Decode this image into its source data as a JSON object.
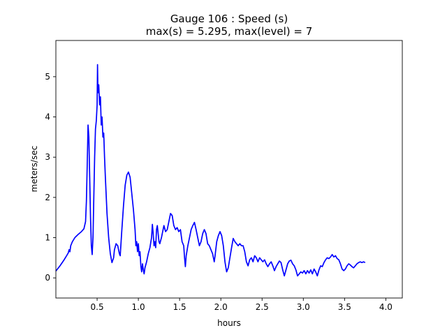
{
  "chart_data": {
    "type": "line",
    "title_line1": "Gauge 106 : Speed (s)",
    "title_line2": "max(s) =   5.295,    max(level) = 7",
    "xlabel": "hours",
    "ylabel": "meters/sec",
    "xlim": [
      0.0,
      4.2
    ],
    "ylim": [
      -0.5,
      5.9
    ],
    "xticks": [
      {
        "value": 0.5,
        "label": "0.5"
      },
      {
        "value": 1.0,
        "label": "1.0"
      },
      {
        "value": 1.5,
        "label": "1.5"
      },
      {
        "value": 2.0,
        "label": "2.0"
      },
      {
        "value": 2.5,
        "label": "2.5"
      },
      {
        "value": 3.0,
        "label": "3.0"
      },
      {
        "value": 3.5,
        "label": "3.5"
      },
      {
        "value": 4.0,
        "label": "4.0"
      }
    ],
    "yticks": [
      {
        "value": 0,
        "label": "0"
      },
      {
        "value": 1,
        "label": "1"
      },
      {
        "value": 2,
        "label": "2"
      },
      {
        "value": 3,
        "label": "3"
      },
      {
        "value": 4,
        "label": "4"
      },
      {
        "value": 5,
        "label": "5"
      }
    ],
    "grid": false,
    "series": [
      {
        "color": "#0000ff",
        "points": [
          [
            0.0,
            0.17
          ],
          [
            0.05,
            0.3
          ],
          [
            0.1,
            0.45
          ],
          [
            0.13,
            0.55
          ],
          [
            0.15,
            0.62
          ],
          [
            0.16,
            0.7
          ],
          [
            0.17,
            0.65
          ],
          [
            0.18,
            0.8
          ],
          [
            0.2,
            0.9
          ],
          [
            0.23,
            1.0
          ],
          [
            0.27,
            1.08
          ],
          [
            0.31,
            1.15
          ],
          [
            0.34,
            1.22
          ],
          [
            0.36,
            1.4
          ],
          [
            0.37,
            1.9
          ],
          [
            0.38,
            2.8
          ],
          [
            0.39,
            3.8
          ],
          [
            0.4,
            3.5
          ],
          [
            0.41,
            2.5
          ],
          [
            0.42,
            1.5
          ],
          [
            0.43,
            0.8
          ],
          [
            0.44,
            0.58
          ],
          [
            0.45,
            1.0
          ],
          [
            0.46,
            2.0
          ],
          [
            0.47,
            3.0
          ],
          [
            0.48,
            3.7
          ],
          [
            0.49,
            3.9
          ],
          [
            0.5,
            4.3
          ],
          [
            0.505,
            5.3
          ],
          [
            0.51,
            4.6
          ],
          [
            0.52,
            4.8
          ],
          [
            0.53,
            4.3
          ],
          [
            0.54,
            4.5
          ],
          [
            0.55,
            3.8
          ],
          [
            0.56,
            4.0
          ],
          [
            0.57,
            3.5
          ],
          [
            0.58,
            3.6
          ],
          [
            0.59,
            3.0
          ],
          [
            0.6,
            2.5
          ],
          [
            0.62,
            1.6
          ],
          [
            0.64,
            1.0
          ],
          [
            0.66,
            0.6
          ],
          [
            0.68,
            0.38
          ],
          [
            0.7,
            0.5
          ],
          [
            0.71,
            0.7
          ],
          [
            0.73,
            0.85
          ],
          [
            0.75,
            0.8
          ],
          [
            0.77,
            0.6
          ],
          [
            0.78,
            0.55
          ],
          [
            0.8,
            1.2
          ],
          [
            0.82,
            1.8
          ],
          [
            0.84,
            2.3
          ],
          [
            0.86,
            2.55
          ],
          [
            0.88,
            2.63
          ],
          [
            0.9,
            2.5
          ],
          [
            0.92,
            2.1
          ],
          [
            0.94,
            1.7
          ],
          [
            0.96,
            1.2
          ],
          [
            0.97,
            0.8
          ],
          [
            0.98,
            0.9
          ],
          [
            0.99,
            0.65
          ],
          [
            1.0,
            0.85
          ],
          [
            1.01,
            0.55
          ],
          [
            1.02,
            0.65
          ],
          [
            1.03,
            0.3
          ],
          [
            1.04,
            0.15
          ],
          [
            1.05,
            0.35
          ],
          [
            1.06,
            0.2
          ],
          [
            1.07,
            0.1
          ],
          [
            1.08,
            0.25
          ],
          [
            1.1,
            0.4
          ],
          [
            1.12,
            0.6
          ],
          [
            1.14,
            0.75
          ],
          [
            1.16,
            1.0
          ],
          [
            1.17,
            1.33
          ],
          [
            1.18,
            1.1
          ],
          [
            1.19,
            0.8
          ],
          [
            1.2,
            0.9
          ],
          [
            1.21,
            0.75
          ],
          [
            1.22,
            1.2
          ],
          [
            1.23,
            1.3
          ],
          [
            1.24,
            1.1
          ],
          [
            1.25,
            0.9
          ],
          [
            1.26,
            0.85
          ],
          [
            1.28,
            1.0
          ],
          [
            1.3,
            1.2
          ],
          [
            1.31,
            1.3
          ],
          [
            1.33,
            1.15
          ],
          [
            1.35,
            1.2
          ],
          [
            1.37,
            1.4
          ],
          [
            1.39,
            1.6
          ],
          [
            1.41,
            1.55
          ],
          [
            1.43,
            1.3
          ],
          [
            1.45,
            1.2
          ],
          [
            1.47,
            1.25
          ],
          [
            1.49,
            1.15
          ],
          [
            1.51,
            1.2
          ],
          [
            1.53,
            0.9
          ],
          [
            1.55,
            0.8
          ],
          [
            1.56,
            0.5
          ],
          [
            1.57,
            0.28
          ],
          [
            1.58,
            0.55
          ],
          [
            1.6,
            0.8
          ],
          [
            1.62,
            1.0
          ],
          [
            1.64,
            1.2
          ],
          [
            1.66,
            1.3
          ],
          [
            1.68,
            1.38
          ],
          [
            1.7,
            1.2
          ],
          [
            1.72,
            1.0
          ],
          [
            1.74,
            0.8
          ],
          [
            1.76,
            0.9
          ],
          [
            1.78,
            1.1
          ],
          [
            1.8,
            1.2
          ],
          [
            1.82,
            1.1
          ],
          [
            1.84,
            0.85
          ],
          [
            1.86,
            0.8
          ],
          [
            1.88,
            0.7
          ],
          [
            1.9,
            0.6
          ],
          [
            1.92,
            0.4
          ],
          [
            1.93,
            0.55
          ],
          [
            1.95,
            0.9
          ],
          [
            1.97,
            1.05
          ],
          [
            1.99,
            1.15
          ],
          [
            2.01,
            1.05
          ],
          [
            2.03,
            0.8
          ],
          [
            2.05,
            0.4
          ],
          [
            2.07,
            0.15
          ],
          [
            2.09,
            0.25
          ],
          [
            2.11,
            0.5
          ],
          [
            2.13,
            0.75
          ],
          [
            2.15,
            0.98
          ],
          [
            2.17,
            0.9
          ],
          [
            2.19,
            0.85
          ],
          [
            2.21,
            0.8
          ],
          [
            2.23,
            0.85
          ],
          [
            2.25,
            0.8
          ],
          [
            2.27,
            0.8
          ],
          [
            2.29,
            0.65
          ],
          [
            2.31,
            0.4
          ],
          [
            2.33,
            0.3
          ],
          [
            2.35,
            0.45
          ],
          [
            2.37,
            0.5
          ],
          [
            2.39,
            0.4
          ],
          [
            2.41,
            0.55
          ],
          [
            2.43,
            0.5
          ],
          [
            2.45,
            0.4
          ],
          [
            2.47,
            0.5
          ],
          [
            2.49,
            0.45
          ],
          [
            2.51,
            0.4
          ],
          [
            2.53,
            0.45
          ],
          [
            2.55,
            0.35
          ],
          [
            2.57,
            0.28
          ],
          [
            2.59,
            0.35
          ],
          [
            2.61,
            0.4
          ],
          [
            2.63,
            0.3
          ],
          [
            2.65,
            0.18
          ],
          [
            2.67,
            0.28
          ],
          [
            2.69,
            0.35
          ],
          [
            2.71,
            0.42
          ],
          [
            2.73,
            0.38
          ],
          [
            2.75,
            0.2
          ],
          [
            2.77,
            0.05
          ],
          [
            2.79,
            0.2
          ],
          [
            2.81,
            0.35
          ],
          [
            2.83,
            0.42
          ],
          [
            2.85,
            0.44
          ],
          [
            2.87,
            0.35
          ],
          [
            2.89,
            0.3
          ],
          [
            2.91,
            0.2
          ],
          [
            2.93,
            0.05
          ],
          [
            2.95,
            0.1
          ],
          [
            2.97,
            0.15
          ],
          [
            2.99,
            0.12
          ],
          [
            3.01,
            0.18
          ],
          [
            3.03,
            0.1
          ],
          [
            3.05,
            0.18
          ],
          [
            3.07,
            0.12
          ],
          [
            3.09,
            0.2
          ],
          [
            3.11,
            0.1
          ],
          [
            3.13,
            0.22
          ],
          [
            3.15,
            0.15
          ],
          [
            3.17,
            0.05
          ],
          [
            3.19,
            0.2
          ],
          [
            3.21,
            0.3
          ],
          [
            3.23,
            0.28
          ],
          [
            3.25,
            0.38
          ],
          [
            3.27,
            0.45
          ],
          [
            3.29,
            0.5
          ],
          [
            3.31,
            0.48
          ],
          [
            3.33,
            0.52
          ],
          [
            3.35,
            0.58
          ],
          [
            3.37,
            0.52
          ],
          [
            3.39,
            0.55
          ],
          [
            3.41,
            0.48
          ],
          [
            3.43,
            0.45
          ],
          [
            3.45,
            0.35
          ],
          [
            3.47,
            0.22
          ],
          [
            3.49,
            0.18
          ],
          [
            3.51,
            0.22
          ],
          [
            3.53,
            0.3
          ],
          [
            3.55,
            0.35
          ],
          [
            3.57,
            0.32
          ],
          [
            3.59,
            0.28
          ],
          [
            3.61,
            0.25
          ],
          [
            3.63,
            0.3
          ],
          [
            3.65,
            0.35
          ],
          [
            3.67,
            0.38
          ],
          [
            3.69,
            0.4
          ],
          [
            3.71,
            0.38
          ],
          [
            3.73,
            0.4
          ],
          [
            3.75,
            0.38
          ]
        ]
      }
    ]
  }
}
